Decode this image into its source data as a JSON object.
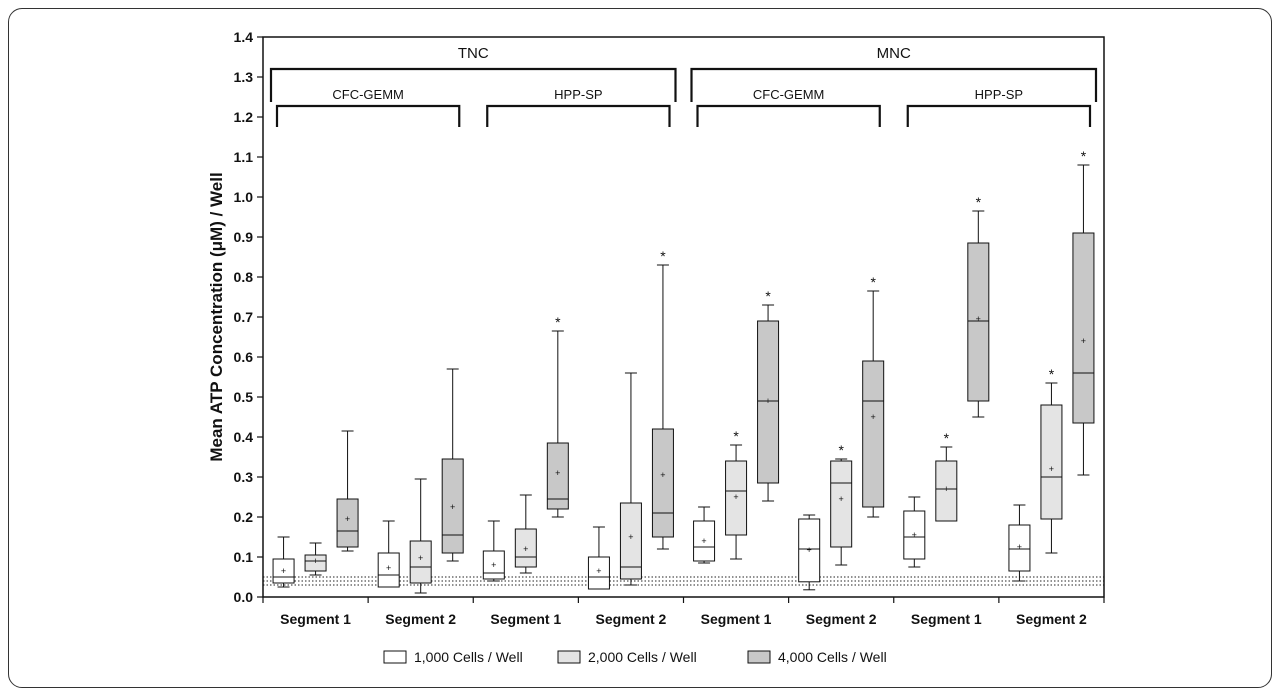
{
  "chart_data": {
    "type": "box",
    "ylabel": "Mean ATP Concentration (μM) / Well",
    "ylim": [
      0.0,
      1.4
    ],
    "yticks": [
      "0.0",
      "0.1",
      "0.2",
      "0.3",
      "0.4",
      "0.5",
      "0.6",
      "0.7",
      "0.8",
      "0.9",
      "1.0",
      "1.1",
      "1.2",
      "1.3",
      "1.4"
    ],
    "top_groups": [
      "TNC",
      "MNC"
    ],
    "sub_groups": [
      "CFC-GEMM",
      "HPP-SP",
      "CFC-GEMM",
      "HPP-SP"
    ],
    "categories": [
      "Segment 1",
      "Segment 2",
      "Segment 1",
      "Segment 2",
      "Segment 1",
      "Segment 2",
      "Segment 1",
      "Segment 2"
    ],
    "reference_lines": [
      0.03,
      0.04,
      0.05
    ],
    "series": [
      {
        "name": "1,000 Cells / Well",
        "color": "#ffffff",
        "boxes": [
          {
            "min": 0.025,
            "q1": 0.035,
            "median": 0.05,
            "q3": 0.095,
            "max": 0.15,
            "mean": 0.065,
            "star": false
          },
          {
            "min": 0.025,
            "q1": 0.025,
            "median": 0.055,
            "q3": 0.11,
            "max": 0.19,
            "mean": 0.072,
            "star": false
          },
          {
            "min": 0.04,
            "q1": 0.045,
            "median": 0.06,
            "q3": 0.115,
            "max": 0.19,
            "mean": 0.08,
            "star": false
          },
          {
            "min": 0.02,
            "q1": 0.02,
            "median": 0.05,
            "q3": 0.1,
            "max": 0.175,
            "mean": 0.065,
            "star": false
          },
          {
            "min": 0.085,
            "q1": 0.09,
            "median": 0.125,
            "q3": 0.19,
            "max": 0.225,
            "mean": 0.14,
            "star": false
          },
          {
            "min": 0.018,
            "q1": 0.038,
            "median": 0.12,
            "q3": 0.195,
            "max": 0.205,
            "mean": 0.118,
            "star": false
          },
          {
            "min": 0.075,
            "q1": 0.095,
            "median": 0.15,
            "q3": 0.215,
            "max": 0.25,
            "mean": 0.155,
            "star": false
          },
          {
            "min": 0.04,
            "q1": 0.065,
            "median": 0.12,
            "q3": 0.18,
            "max": 0.23,
            "mean": 0.125,
            "star": false
          }
        ]
      },
      {
        "name": "2,000 Cells / Well",
        "color": "#e4e4e4",
        "boxes": [
          {
            "min": 0.055,
            "q1": 0.065,
            "median": 0.09,
            "q3": 0.105,
            "max": 0.135,
            "mean": 0.09,
            "star": false
          },
          {
            "min": 0.01,
            "q1": 0.035,
            "median": 0.075,
            "q3": 0.14,
            "max": 0.295,
            "mean": 0.098,
            "star": false
          },
          {
            "min": 0.06,
            "q1": 0.075,
            "median": 0.1,
            "q3": 0.17,
            "max": 0.255,
            "mean": 0.12,
            "star": false
          },
          {
            "min": 0.03,
            "q1": 0.045,
            "median": 0.075,
            "q3": 0.235,
            "max": 0.56,
            "mean": 0.15,
            "star": false
          },
          {
            "min": 0.095,
            "q1": 0.155,
            "median": 0.265,
            "q3": 0.34,
            "max": 0.38,
            "mean": 0.25,
            "star": true
          },
          {
            "min": 0.08,
            "q1": 0.125,
            "median": 0.285,
            "q3": 0.34,
            "max": 0.345,
            "mean": 0.245,
            "star": true
          },
          {
            "min": 0.19,
            "q1": 0.19,
            "median": 0.27,
            "q3": 0.34,
            "max": 0.375,
            "mean": 0.27,
            "star": true
          },
          {
            "min": 0.11,
            "q1": 0.195,
            "median": 0.3,
            "q3": 0.48,
            "max": 0.535,
            "mean": 0.32,
            "star": true
          }
        ]
      },
      {
        "name": "4,000 Cells / Well",
        "color": "#c8c8c8",
        "boxes": [
          {
            "min": 0.115,
            "q1": 0.125,
            "median": 0.165,
            "q3": 0.245,
            "max": 0.415,
            "mean": 0.195,
            "star": false
          },
          {
            "min": 0.09,
            "q1": 0.11,
            "median": 0.155,
            "q3": 0.345,
            "max": 0.57,
            "mean": 0.225,
            "star": false
          },
          {
            "min": 0.2,
            "q1": 0.22,
            "median": 0.245,
            "q3": 0.385,
            "max": 0.665,
            "mean": 0.31,
            "star": true
          },
          {
            "min": 0.12,
            "q1": 0.15,
            "median": 0.21,
            "q3": 0.42,
            "max": 0.83,
            "mean": 0.305,
            "star": true
          },
          {
            "min": 0.24,
            "q1": 0.285,
            "median": 0.49,
            "q3": 0.69,
            "max": 0.73,
            "mean": 0.49,
            "star": true
          },
          {
            "min": 0.2,
            "q1": 0.225,
            "median": 0.49,
            "q3": 0.59,
            "max": 0.765,
            "mean": 0.45,
            "star": true
          },
          {
            "min": 0.45,
            "q1": 0.49,
            "median": 0.69,
            "q3": 0.885,
            "max": 0.965,
            "mean": 0.695,
            "star": true
          },
          {
            "min": 0.305,
            "q1": 0.435,
            "median": 0.56,
            "q3": 0.91,
            "max": 1.08,
            "mean": 0.64,
            "star": true
          }
        ]
      }
    ],
    "star_symbol": "*",
    "mean_symbol": "+"
  }
}
